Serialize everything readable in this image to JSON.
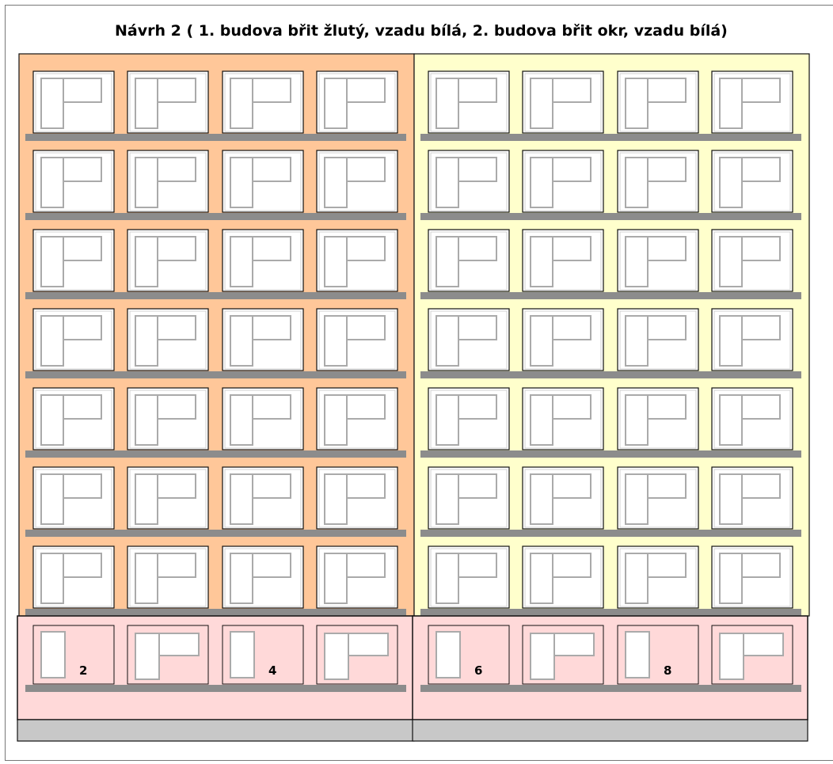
{
  "title": "Návrh 2 ( 1. budova břit žlutý, vzadu bílá, 2. budova břit okr, vzadu bílá)",
  "colors": {
    "upper_left_facade": "#ffc799",
    "upper_right_facade": "#ffffcc",
    "ground_floor": "#ffd9d9",
    "plinth": "#c8c8c8",
    "balcony_slab": "#8c8c8c",
    "window_fill": "#ffffff",
    "window_frame": "#aaaaaa",
    "outline": "#111111"
  },
  "buildings": [
    {
      "name": "building-left",
      "facade": "upper_left_facade"
    },
    {
      "name": "building-right",
      "facade": "upper_right_facade"
    }
  ],
  "upper_floors": 7,
  "windows_per_floor_per_building": 4,
  "ground_floor_windows": [
    {
      "type": "door",
      "number": "2"
    },
    {
      "type": "window",
      "number": ""
    },
    {
      "type": "door",
      "number": "4"
    },
    {
      "type": "window",
      "number": ""
    },
    {
      "type": "door",
      "number": "6"
    },
    {
      "type": "window",
      "number": ""
    },
    {
      "type": "door",
      "number": "8"
    },
    {
      "type": "window",
      "number": ""
    }
  ]
}
